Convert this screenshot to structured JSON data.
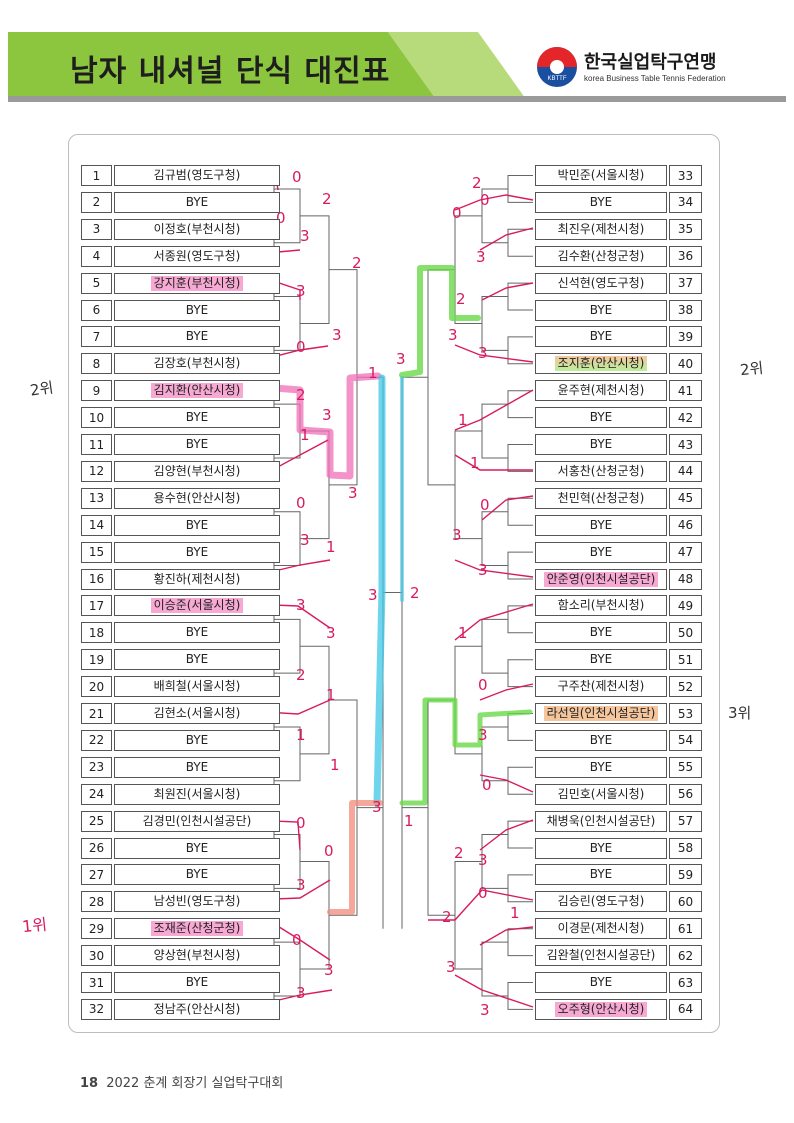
{
  "header": {
    "title": "남자 내셔널 단식 대진표",
    "org_name": "한국실업탁구연맹",
    "org_sub": "korea Business Table Tennis Federation",
    "logo_text": "KBTTF"
  },
  "left_players": [
    {
      "no": "1",
      "name": "김규범(영도구청)"
    },
    {
      "no": "2",
      "name": "BYE"
    },
    {
      "no": "3",
      "name": "이정호(부천시청)"
    },
    {
      "no": "4",
      "name": "서종원(영도구청)"
    },
    {
      "no": "5",
      "name": "강지훈(부천시청)"
    },
    {
      "no": "6",
      "name": "BYE"
    },
    {
      "no": "7",
      "name": "BYE"
    },
    {
      "no": "8",
      "name": "김장호(부천시청)"
    },
    {
      "no": "9",
      "name": "김지환(안산시청)"
    },
    {
      "no": "10",
      "name": "BYE"
    },
    {
      "no": "11",
      "name": "BYE"
    },
    {
      "no": "12",
      "name": "김양현(부천시청)"
    },
    {
      "no": "13",
      "name": "용수현(안산시청)"
    },
    {
      "no": "14",
      "name": "BYE"
    },
    {
      "no": "15",
      "name": "BYE"
    },
    {
      "no": "16",
      "name": "황진하(제천시청)"
    },
    {
      "no": "17",
      "name": "이승준(서울시청)"
    },
    {
      "no": "18",
      "name": "BYE"
    },
    {
      "no": "19",
      "name": "BYE"
    },
    {
      "no": "20",
      "name": "배희철(서울시청)"
    },
    {
      "no": "21",
      "name": "김현소(서울시청)"
    },
    {
      "no": "22",
      "name": "BYE"
    },
    {
      "no": "23",
      "name": "BYE"
    },
    {
      "no": "24",
      "name": "최원진(서울시청)"
    },
    {
      "no": "25",
      "name": "김경민(인천시설공단)"
    },
    {
      "no": "26",
      "name": "BYE"
    },
    {
      "no": "27",
      "name": "BYE"
    },
    {
      "no": "28",
      "name": "남성빈(영도구청)"
    },
    {
      "no": "29",
      "name": "조재준(산청군청)"
    },
    {
      "no": "30",
      "name": "양상현(부천시청)"
    },
    {
      "no": "31",
      "name": "BYE"
    },
    {
      "no": "32",
      "name": "정남주(안산시청)"
    }
  ],
  "right_players": [
    {
      "no": "33",
      "name": "박민준(서울시청)"
    },
    {
      "no": "34",
      "name": "BYE"
    },
    {
      "no": "35",
      "name": "최진우(제천시청)"
    },
    {
      "no": "36",
      "name": "김수환(산청군청)"
    },
    {
      "no": "37",
      "name": "신석현(영도구청)"
    },
    {
      "no": "38",
      "name": "BYE"
    },
    {
      "no": "39",
      "name": "BYE"
    },
    {
      "no": "40",
      "name": "조지훈(안산시청)"
    },
    {
      "no": "41",
      "name": "윤주현(제천시청)"
    },
    {
      "no": "42",
      "name": "BYE"
    },
    {
      "no": "43",
      "name": "BYE"
    },
    {
      "no": "44",
      "name": "서홍찬(산청군청)"
    },
    {
      "no": "45",
      "name": "천민혁(산청군청)"
    },
    {
      "no": "46",
      "name": "BYE"
    },
    {
      "no": "47",
      "name": "BYE"
    },
    {
      "no": "48",
      "name": "안준영(인천시설공단)"
    },
    {
      "no": "49",
      "name": "함소리(부천시청)"
    },
    {
      "no": "50",
      "name": "BYE"
    },
    {
      "no": "51",
      "name": "BYE"
    },
    {
      "no": "52",
      "name": "구주찬(제천시청)"
    },
    {
      "no": "53",
      "name": "라선일(인천시설공단)"
    },
    {
      "no": "54",
      "name": "BYE"
    },
    {
      "no": "55",
      "name": "BYE"
    },
    {
      "no": "56",
      "name": "김민호(서울시청)"
    },
    {
      "no": "57",
      "name": "채병욱(인천시설공단)"
    },
    {
      "no": "58",
      "name": "BYE"
    },
    {
      "no": "59",
      "name": "BYE"
    },
    {
      "no": "60",
      "name": "김승린(영도구청)"
    },
    {
      "no": "61",
      "name": "이경문(제천시청)"
    },
    {
      "no": "62",
      "name": "김완철(인천시설공단)"
    },
    {
      "no": "63",
      "name": "BYE"
    },
    {
      "no": "64",
      "name": "오주형(안산시청)"
    }
  ],
  "highlights": {
    "left": {
      "5": "pink",
      "9": "pink",
      "17": "pink",
      "29": "pink"
    },
    "right": {
      "40": "green",
      "48": "pink",
      "53": "orange",
      "64": "pink"
    }
  },
  "annotations": {
    "rank_1": "1위",
    "rank_2": "2위",
    "rank_3": "3위"
  },
  "footer": {
    "page": "18",
    "text": "2022 춘계 회장기 실업탁구대회"
  },
  "colors": {
    "header_green": "#8cc63f",
    "header_gray": "#9a9a9a",
    "pen_red": "#d81b60",
    "marker_pink": "#f06fb8",
    "marker_cyan": "#3ec7e6",
    "marker_green": "#6ad94a",
    "marker_salmon": "#f28a7a",
    "logo_red": "#e4262b",
    "logo_blue": "#1a4fa0"
  }
}
